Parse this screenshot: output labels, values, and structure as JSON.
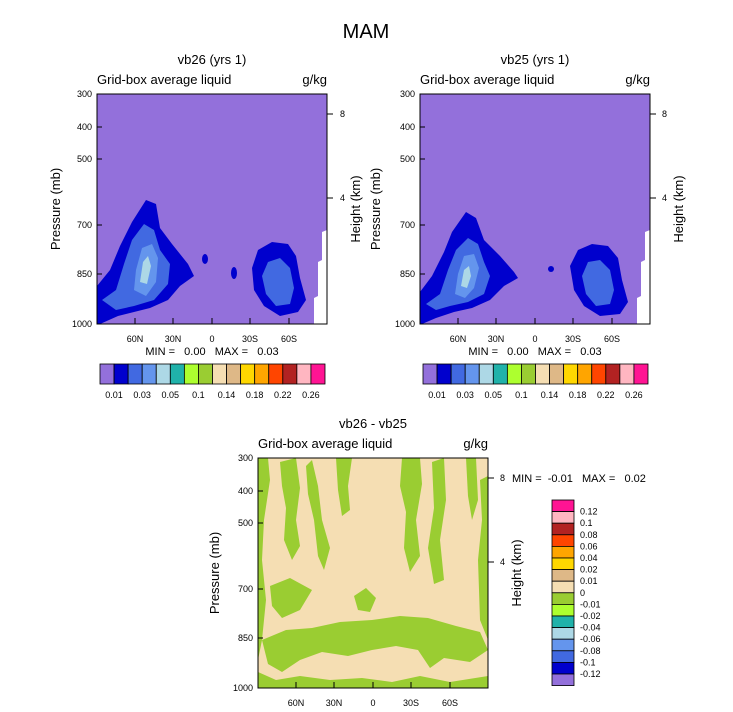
{
  "figure_title": "MAM",
  "palette": {
    "background_purple": "#9370db",
    "bar_colors": [
      "#9370db",
      "#0000cd",
      "#4169e1",
      "#6495ed",
      "#add8e6",
      "#20b2aa",
      "#adff2f",
      "#9acd32",
      "#f5deb3",
      "#deb887",
      "#ffd700",
      "#ffa500",
      "#ff4500",
      "#b22222",
      "#ffb6c1",
      "#ff1493"
    ],
    "diff_colors": [
      "#ff1493",
      "#ffb6c1",
      "#b22222",
      "#ff4500",
      "#ffa500",
      "#ffd700",
      "#deb887",
      "#f5deb3",
      "#9acd32",
      "#adff2f",
      "#20b2aa",
      "#add8e6",
      "#6495ed",
      "#4169e1",
      "#0000cd",
      "#9370db"
    ]
  },
  "chart_data": [
    {
      "id": "panel-vb26",
      "type": "heatmap",
      "title": "vb26 (yrs 1)",
      "left_label": "Grid-box average liquid",
      "right_label": "g/kg",
      "ylabel": "Pressure (mb)",
      "ylabel_right": "Height (km)",
      "yticks": [
        "300",
        "400",
        "500",
        "700",
        "850",
        "1000"
      ],
      "yticks_right": [
        "8",
        "4"
      ],
      "xticks": [
        "60N",
        "30N",
        "0",
        "30S",
        "60S"
      ],
      "minmax": "MIN =   0.00   MAX =   0.03",
      "colorbar_labels": [
        "0.01",
        "0.03",
        "0.05",
        "0.1",
        "0.14",
        "0.18",
        "0.22",
        "0.26"
      ]
    },
    {
      "id": "panel-vb25",
      "type": "heatmap",
      "title": "vb25 (yrs 1)",
      "left_label": "Grid-box average liquid",
      "right_label": "g/kg",
      "ylabel": "Pressure (mb)",
      "ylabel_right": "Height (km)",
      "yticks": [
        "300",
        "400",
        "500",
        "700",
        "850",
        "1000"
      ],
      "yticks_right": [
        "8",
        "4"
      ],
      "xticks": [
        "60N",
        "30N",
        "0",
        "30S",
        "60S"
      ],
      "minmax": "MIN =   0.00   MAX =   0.03",
      "colorbar_labels": [
        "0.01",
        "0.03",
        "0.05",
        "0.1",
        "0.14",
        "0.18",
        "0.22",
        "0.26"
      ]
    },
    {
      "id": "panel-diff",
      "type": "heatmap",
      "title": "vb26 - vb25",
      "left_label": "Grid-box average liquid",
      "right_label": "g/kg",
      "ylabel": "Pressure (mb)",
      "ylabel_right": "Height (km)",
      "yticks": [
        "300",
        "400",
        "500",
        "700",
        "850",
        "1000"
      ],
      "yticks_right": [
        "8",
        "4"
      ],
      "xticks": [
        "60N",
        "30N",
        "0",
        "30S",
        "60S"
      ],
      "minmax": "MIN =  -0.01   MAX =   0.02",
      "colorbar_labels": [
        "0.12",
        "0.1",
        "0.08",
        "0.06",
        "0.04",
        "0.02",
        "0.01",
        "0",
        "-0.01",
        "-0.02",
        "-0.04",
        "-0.06",
        "-0.08",
        "-0.1",
        "-0.12"
      ]
    }
  ]
}
